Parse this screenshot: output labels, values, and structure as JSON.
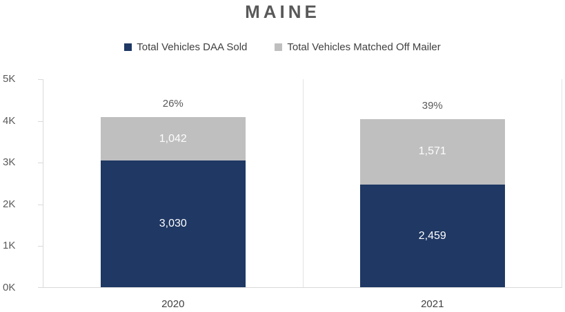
{
  "chart_data": {
    "type": "bar",
    "stacked": true,
    "title": "MAINE",
    "categories": [
      "2020",
      "2021"
    ],
    "series": [
      {
        "name": "Total Vehicles DAA Sold",
        "color": "#1F3864",
        "values": [
          3030,
          2459
        ],
        "value_labels": [
          "3,030",
          "2,459"
        ]
      },
      {
        "name": "Total Vehicles Matched Off Mailer",
        "color": "#BFBFBF",
        "values": [
          1042,
          1571
        ],
        "value_labels": [
          "1,042",
          "1,571"
        ]
      }
    ],
    "percent_labels": [
      "26%",
      "39%"
    ],
    "totals": [
      4072,
      4030
    ],
    "xlabel": "",
    "ylabel": "",
    "ylim": [
      0,
      5000
    ],
    "ytick_labels": [
      "0K",
      "1K",
      "2K",
      "3K",
      "4K",
      "5K"
    ],
    "legend_position": "top",
    "grid": "vertical category separators only",
    "colors": {
      "title_text": "#595959",
      "axis_line": "#D9D9D9",
      "separator_line": "#E3E3E3",
      "tick_text": "#595959",
      "bar_value_text": "#FFFFFF"
    }
  }
}
